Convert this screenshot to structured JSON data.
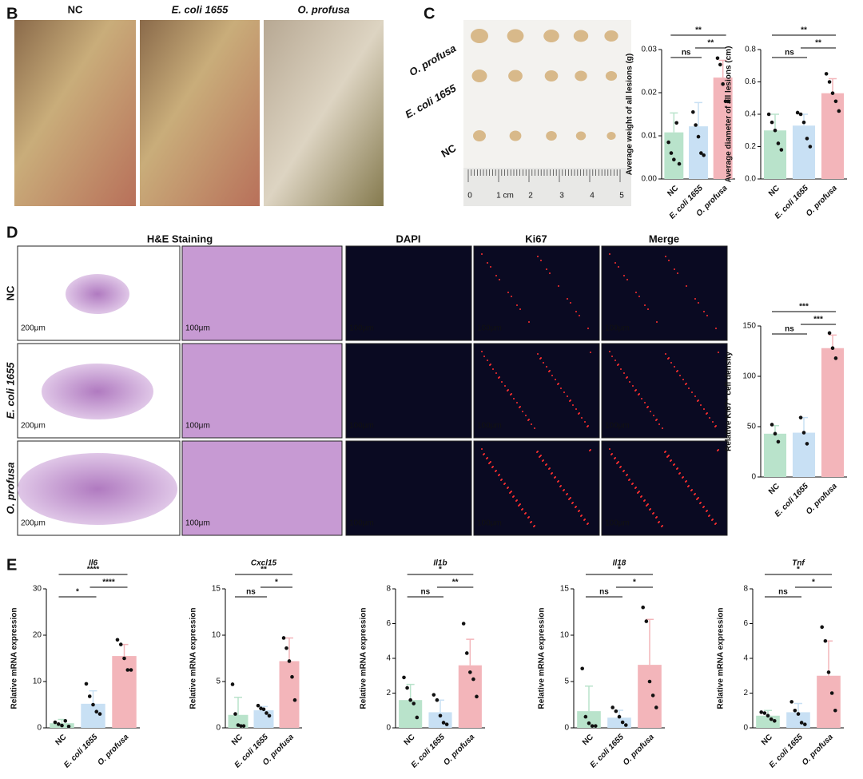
{
  "labels": {
    "panels": [
      "B",
      "C",
      "D",
      "E"
    ],
    "b_titles": [
      "NC",
      "E. coli 1655",
      "O. profusa"
    ],
    "c_rows": [
      "O. profusa",
      "E. coli 1655",
      "NC"
    ],
    "ruler": [
      "0",
      "1 cm",
      "2",
      "3",
      "4",
      "5"
    ],
    "d_headers": [
      "H&E Staining",
      "DAPI",
      "Ki67",
      "Merge"
    ],
    "d_rows": [
      "NC",
      "E. coli 1655",
      "O. profusa"
    ],
    "scale_he": "200μm",
    "scale_zoom": "100μm"
  },
  "chart_data": [
    {
      "type": "bar",
      "ylabel": "Average weight of all lesions (g)",
      "categories": [
        "NC",
        "E. coli 1655",
        "O. profusa"
      ],
      "colors": [
        "#b9e3cb",
        "#c8e0f4",
        "#f3b5ba"
      ],
      "values": [
        0.0108,
        0.0122,
        0.0235
      ],
      "errors": [
        0.0045,
        0.0055,
        0.004
      ],
      "points": [
        [
          0.0085,
          0.006,
          0.0045,
          0.013,
          0.0035
        ],
        [
          0.0155,
          0.0125,
          0.0098,
          0.006,
          0.0055
        ],
        [
          0.028,
          0.0265,
          0.022,
          0.018,
          0.018
        ]
      ],
      "ylim": [
        0,
        0.03
      ],
      "yticks": [
        {
          "value": 0,
          "label": "0.00"
        },
        {
          "value": 0.01,
          "label": "0.01"
        },
        {
          "value": 0.02,
          "label": "0.02"
        },
        {
          "value": 0.03,
          "label": "0.03"
        }
      ],
      "brackets": [
        "ns",
        "**",
        "**"
      ]
    },
    {
      "type": "bar",
      "ylabel": "Average diameter of all lesions (cm)",
      "categories": [
        "NC",
        "E. coli 1655",
        "O. profusa"
      ],
      "colors": [
        "#b9e3cb",
        "#c8e0f4",
        "#f3b5ba"
      ],
      "values": [
        0.3,
        0.33,
        0.53
      ],
      "errors": [
        0.1,
        0.07,
        0.09
      ],
      "points": [
        [
          0.4,
          0.35,
          0.3,
          0.22,
          0.18
        ],
        [
          0.41,
          0.4,
          0.35,
          0.25,
          0.2
        ],
        [
          0.65,
          0.6,
          0.53,
          0.48,
          0.42
        ]
      ],
      "ylim": [
        0,
        0.8
      ],
      "yticks": [
        {
          "value": 0,
          "label": "0.0"
        },
        0.2,
        0.4,
        0.6,
        0.8
      ],
      "brackets": [
        "ns",
        "**",
        "**"
      ]
    },
    {
      "type": "bar",
      "ylabel": "Relative Ki67⁺ cell density",
      "categories": [
        "NC",
        "E. coli 1655",
        "O. profusa"
      ],
      "colors": [
        "#b9e3cb",
        "#c8e0f4",
        "#f3b5ba"
      ],
      "values": [
        43,
        44,
        128
      ],
      "errors": [
        8,
        15,
        13
      ],
      "points": [
        [
          52,
          43,
          35
        ],
        [
          59,
          44,
          33
        ],
        [
          143,
          128,
          118
        ]
      ],
      "ylim": [
        0,
        150
      ],
      "yticks": [
        0,
        50,
        100,
        150
      ],
      "brackets": [
        "ns",
        "***",
        "***"
      ]
    },
    {
      "type": "bar",
      "title": "Il6",
      "ylabel": "Relative mRNA expression",
      "categories": [
        "NC",
        "E. coli 1655",
        "O. profusa"
      ],
      "colors": [
        "#b9e3cb",
        "#c8e0f4",
        "#f3b5ba"
      ],
      "values": [
        1,
        5.2,
        15.5
      ],
      "errors": [
        0.8,
        2.8,
        2.5
      ],
      "points": [
        [
          1.2,
          0.8,
          0.5,
          1.5,
          0.3
        ],
        [
          9.5,
          6.8,
          5,
          3.5,
          3
        ],
        [
          19,
          18,
          15,
          12.5,
          12.5
        ]
      ],
      "ylim": [
        0,
        30
      ],
      "yticks": [
        0,
        10,
        20,
        30
      ],
      "brackets": [
        "*",
        "****",
        "****"
      ]
    },
    {
      "type": "bar",
      "title": "Cxcl15",
      "ylabel": "Relative mRNA expression",
      "categories": [
        "NC",
        "E. coli 1655",
        "O. profusa"
      ],
      "colors": [
        "#b9e3cb",
        "#c8e0f4",
        "#f3b5ba"
      ],
      "values": [
        1.4,
        1.9,
        7.2
      ],
      "errors": [
        1.9,
        0.4,
        2.5
      ],
      "points": [
        [
          4.7,
          1.5,
          0.3,
          0.2,
          0.2
        ],
        [
          2.4,
          2.1,
          2,
          1.6,
          1.3
        ],
        [
          9.7,
          8.6,
          7.2,
          5.5,
          3
        ]
      ],
      "ylim": [
        0,
        15
      ],
      "yticks": [
        0,
        5,
        10,
        15
      ],
      "brackets": [
        "ns",
        "*",
        "**"
      ]
    },
    {
      "type": "bar",
      "title": "Il1b",
      "ylabel": "Relative mRNA expression",
      "categories": [
        "NC",
        "E. coli 1655",
        "O. profusa"
      ],
      "colors": [
        "#b9e3cb",
        "#c8e0f4",
        "#f3b5ba"
      ],
      "values": [
        1.6,
        0.9,
        3.6
      ],
      "errors": [
        0.9,
        0.7,
        1.5
      ],
      "points": [
        [
          2.9,
          2.3,
          1.6,
          1.4,
          0.6
        ],
        [
          1.9,
          1.6,
          0.7,
          0.3,
          0.2
        ],
        [
          6,
          4.3,
          3.2,
          2.8,
          1.8
        ]
      ],
      "ylim": [
        0,
        8
      ],
      "yticks": [
        0,
        2,
        4,
        6,
        8
      ],
      "brackets": [
        "ns",
        "**",
        "*"
      ]
    },
    {
      "type": "bar",
      "title": "Il18",
      "ylabel": "Relative mRNA expression",
      "categories": [
        "NC",
        "E. coli 1655",
        "O. profusa"
      ],
      "colors": [
        "#b9e3cb",
        "#c8e0f4",
        "#f3b5ba"
      ],
      "values": [
        1.8,
        1.1,
        6.8
      ],
      "errors": [
        2.7,
        0.8,
        4.9
      ],
      "points": [
        [
          6.4,
          1.2,
          0.5,
          0.2,
          0.2
        ],
        [
          2.2,
          1.8,
          1.2,
          0.6,
          0.3
        ],
        [
          13,
          11.5,
          5,
          3.5,
          2.2
        ]
      ],
      "ylim": [
        0,
        15
      ],
      "yticks": [
        0,
        5,
        10,
        15
      ],
      "brackets": [
        "ns",
        "*",
        "*"
      ]
    },
    {
      "type": "bar",
      "title": "Tnf",
      "ylabel": "Relative mRNA expression",
      "categories": [
        "NC",
        "E. coli 1655",
        "O. profusa"
      ],
      "colors": [
        "#b9e3cb",
        "#c8e0f4",
        "#f3b5ba"
      ],
      "values": [
        0.7,
        0.9,
        3
      ],
      "errors": [
        0.3,
        0.5,
        2
      ],
      "points": [
        [
          0.9,
          0.85,
          0.7,
          0.5,
          0.4
        ],
        [
          1.5,
          1,
          0.8,
          0.3,
          0.2
        ],
        [
          5.8,
          5,
          3.2,
          2,
          1
        ]
      ],
      "ylim": [
        0,
        8
      ],
      "yticks": [
        0,
        2,
        4,
        6,
        8
      ],
      "brackets": [
        "ns",
        "*",
        "*"
      ]
    }
  ]
}
